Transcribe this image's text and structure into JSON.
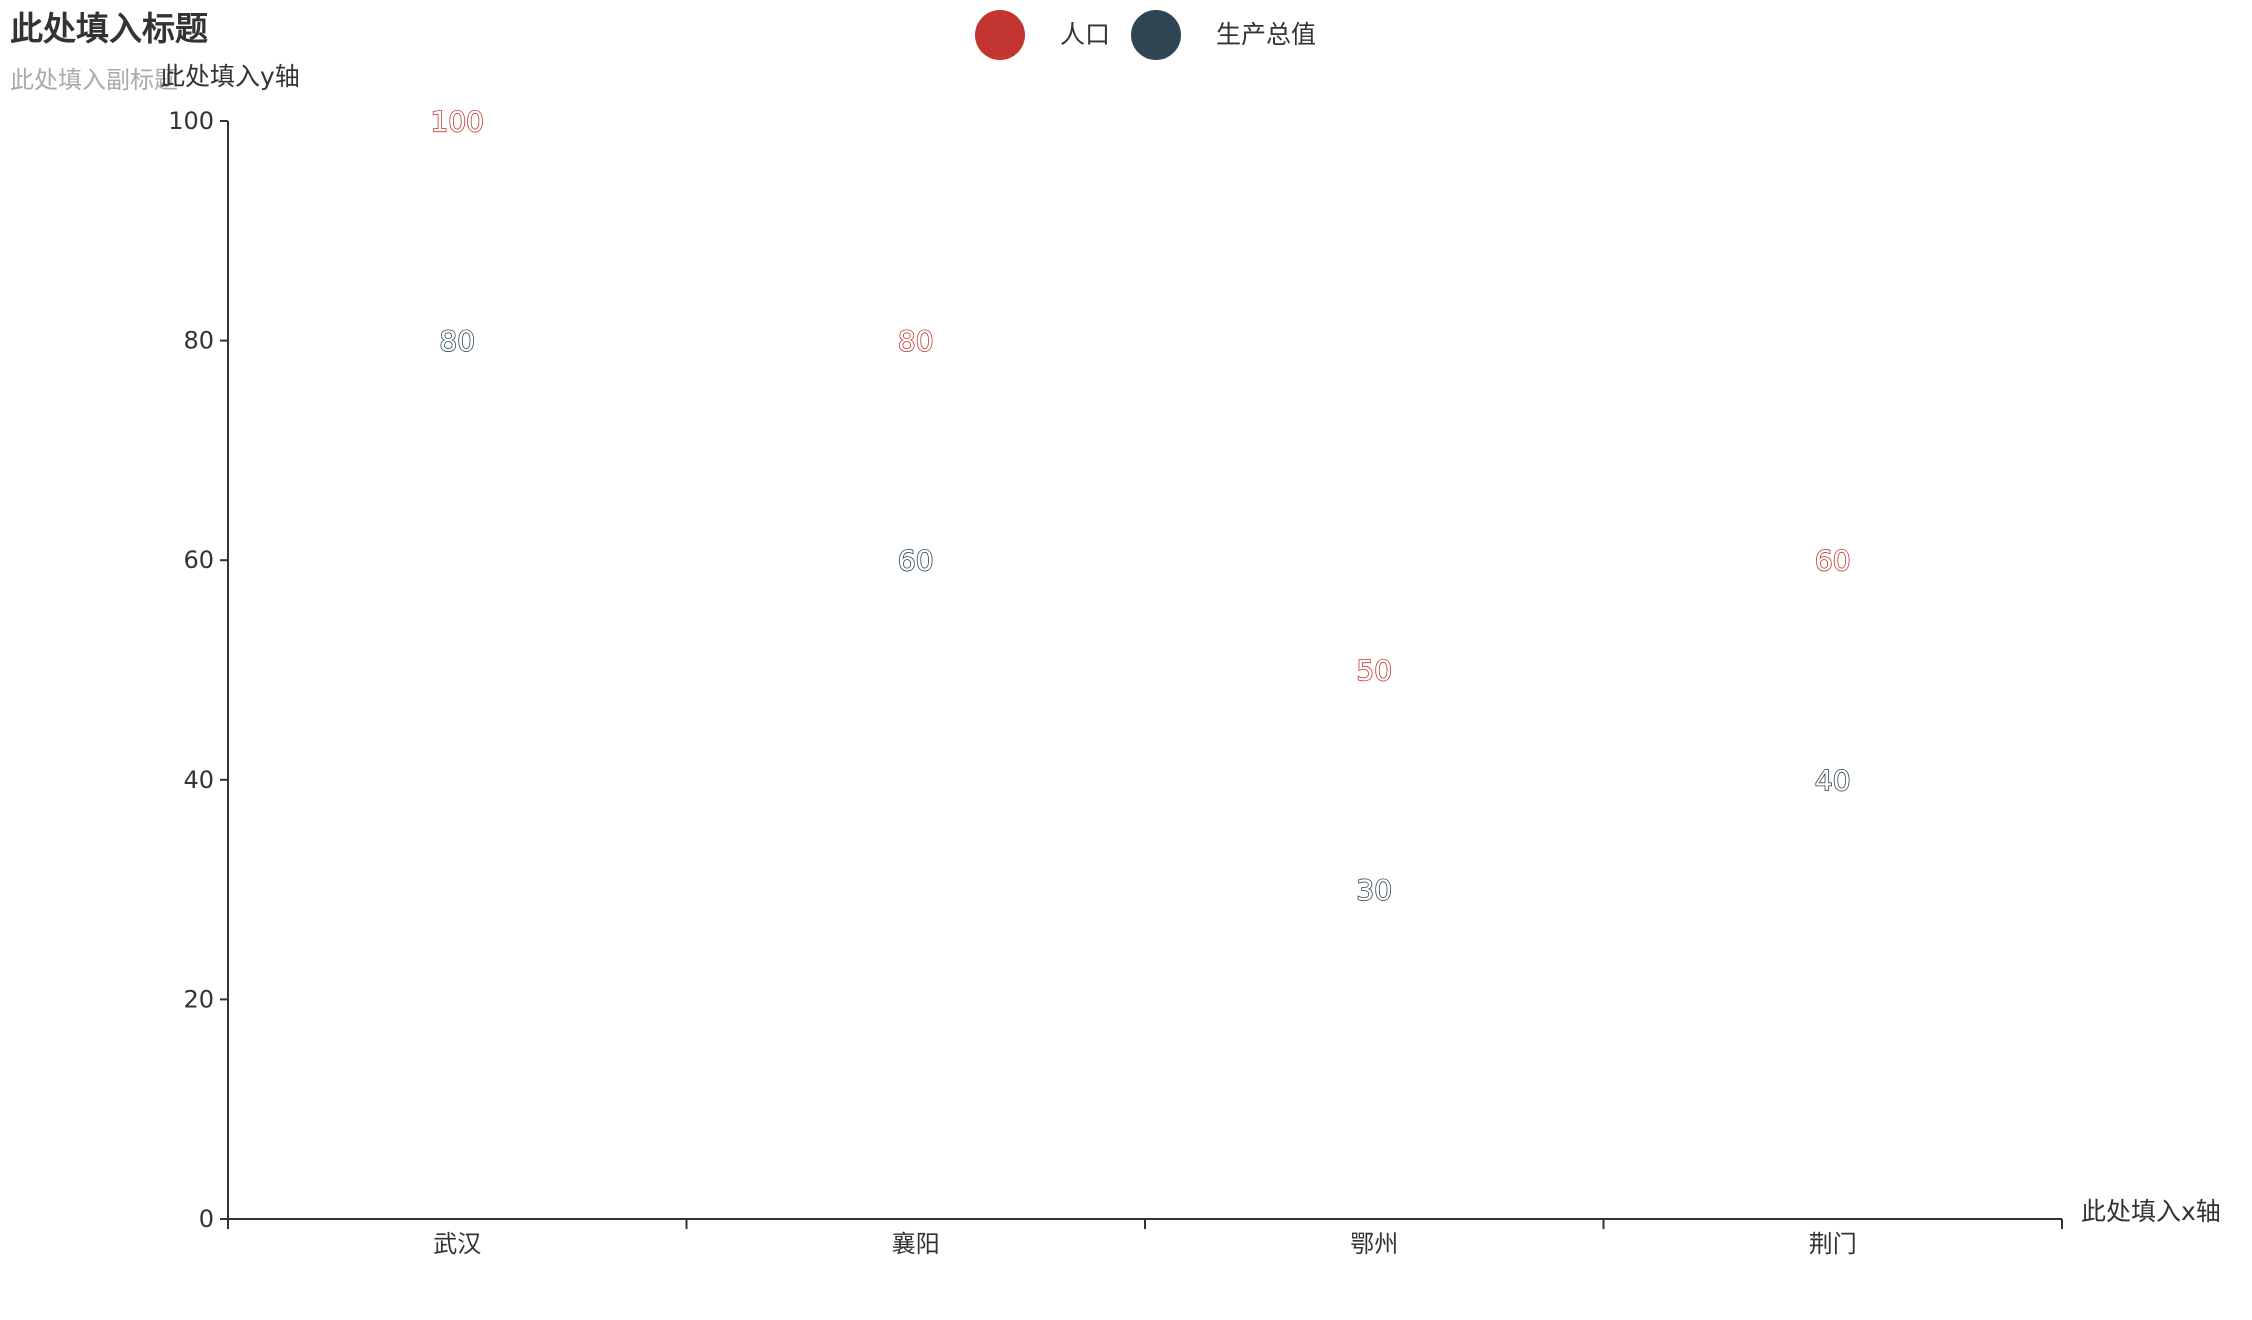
{
  "chart_data": {
    "type": "scatter",
    "title": "此处填入标题",
    "subtitle": "此处填入副标题",
    "xlabel": "此处填入x轴",
    "ylabel": "此处填入y轴",
    "categories": [
      "武汉",
      "襄阳",
      "鄂州",
      "荆门"
    ],
    "ylim": [
      0,
      100
    ],
    "yticks": [
      0,
      20,
      40,
      60,
      80,
      100
    ],
    "grid": false,
    "legend_position": "top-center",
    "series": [
      {
        "name": "人口",
        "values": [
          100,
          80,
          50,
          60
        ],
        "color": "#c23531"
      },
      {
        "name": "生产总值",
        "values": [
          80,
          60,
          30,
          40
        ],
        "color": "#2f4554"
      }
    ]
  }
}
